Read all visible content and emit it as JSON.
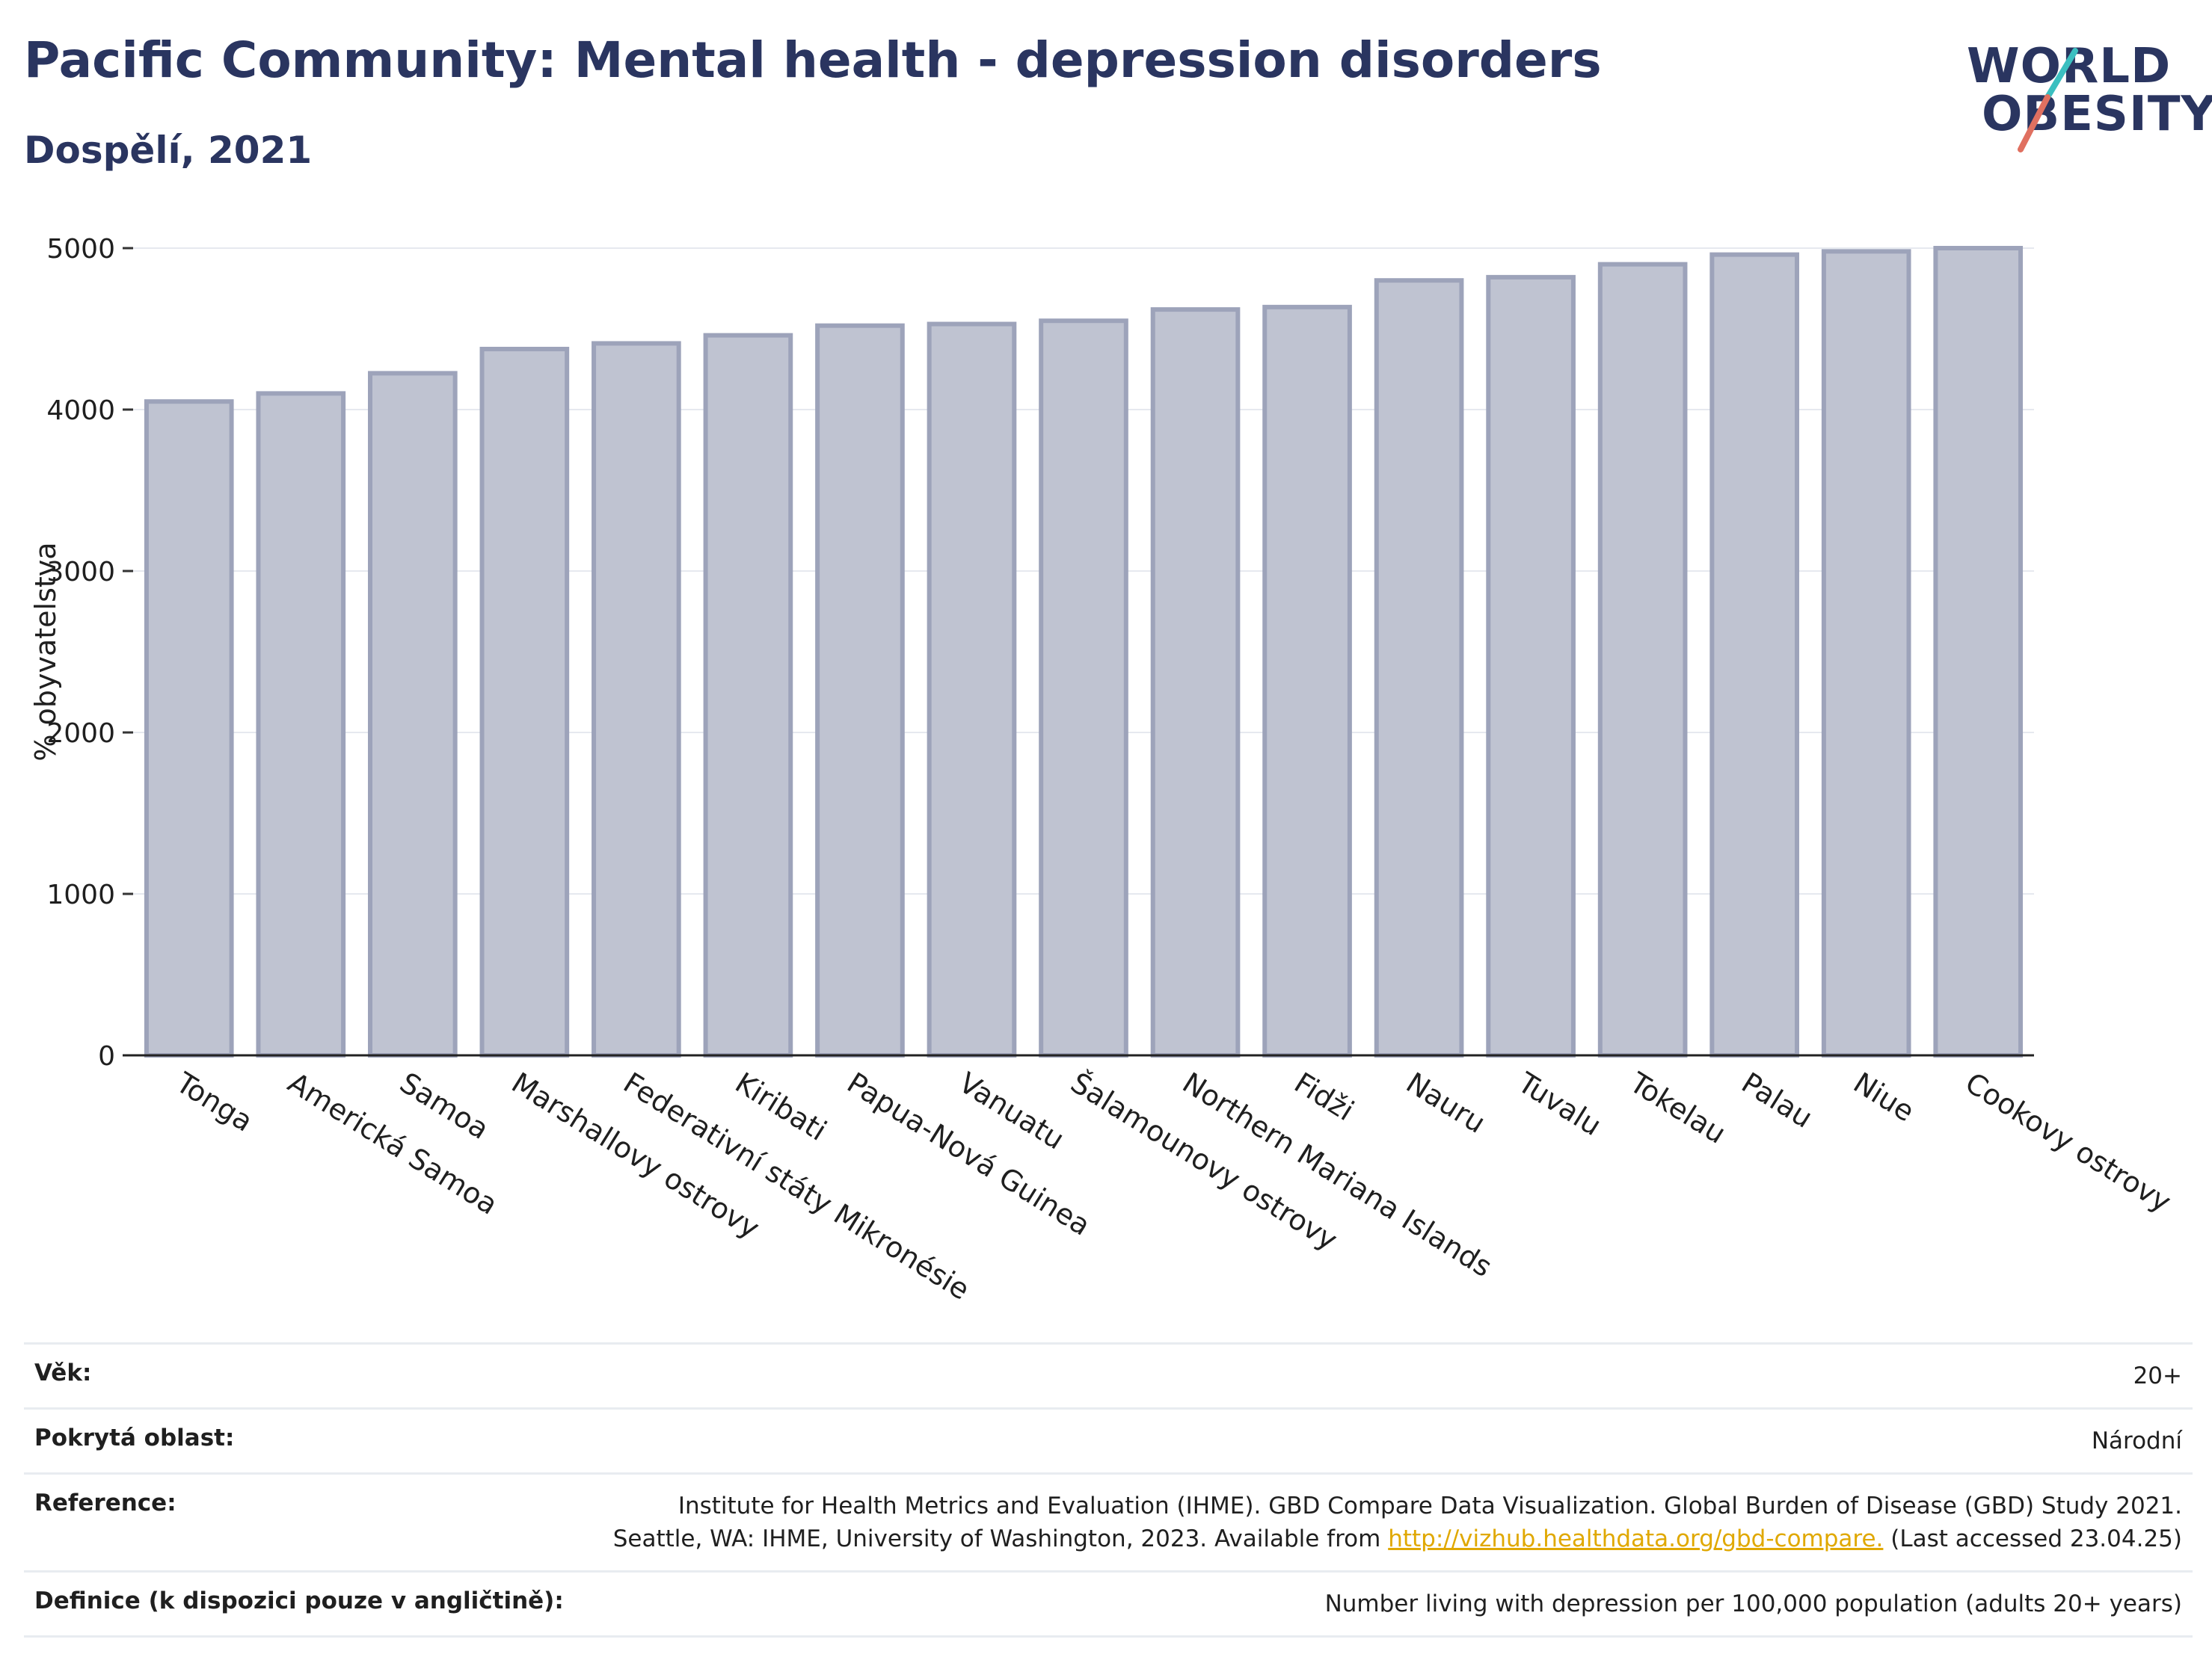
{
  "header": {
    "title": "Pacific Community: Mental health - depression disorders",
    "subtitle": "Dospělí, 2021",
    "logo_line1": "WORLD",
    "logo_line2": "OBESITY"
  },
  "colors": {
    "title": "#2a3560",
    "bar_fill": "#bfc3d1",
    "bar_stroke": "#9da3ba",
    "grid": "#e6e9ef",
    "link": "#e0a800",
    "logo_teal": "#3bbfc0",
    "logo_coral": "#e07060"
  },
  "chart_data": {
    "type": "bar",
    "categories": [
      "Tonga",
      "Americká Samoa",
      "Samoa",
      "Marshallovy ostrovy",
      "Federativní státy Mikronésie",
      "Kiribati",
      "Papua-Nová Guinea",
      "Vanuatu",
      "Šalamounovy ostrovy",
      "Northern Mariana Islands",
      "Fidži",
      "Nauru",
      "Tuvalu",
      "Tokelau",
      "Palau",
      "Niue",
      "Cookovy ostrovy"
    ],
    "values": [
      4050,
      4100,
      4225,
      4375,
      4410,
      4460,
      4520,
      4530,
      4550,
      4620,
      4635,
      4800,
      4820,
      4900,
      4960,
      4980,
      5000
    ],
    "ylabel": "% obyvatelstva",
    "yticks": [
      0,
      1000,
      2000,
      3000,
      4000,
      5000
    ],
    "ylim": [
      0,
      5000
    ],
    "grid": true
  },
  "meta": {
    "age_label": "Věk:",
    "age_value": "20+",
    "area_label": "Pokrytá oblast:",
    "area_value": "Národní",
    "reference_label": "Reference:",
    "reference_line1": "Institute for Health Metrics and Evaluation (IHME). GBD Compare Data Visualization. Global Burden of Disease (GBD) Study 2021.",
    "reference_line2_pre": "Seattle, WA: IHME, University of Washington, 2023. Available from ",
    "reference_link": "http://vizhub.healthdata.org/gbd-compare.",
    "reference_line2_post": " (Last accessed 23.04.25)",
    "definition_label": "Definice (k dispozici pouze v angličtině):",
    "definition_value": "Number living with depression per 100,000 population (adults 20+ years)"
  }
}
